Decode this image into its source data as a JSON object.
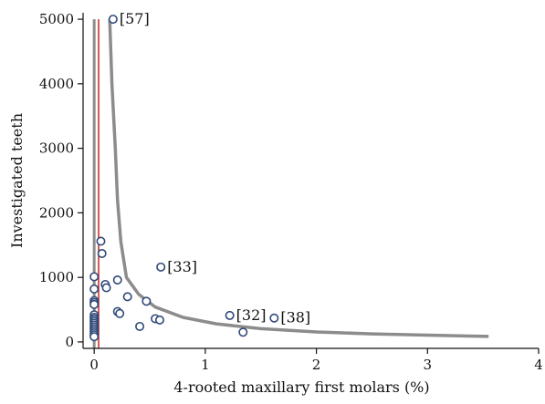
{
  "chart_data": {
    "type": "scatter",
    "title": "",
    "xlabel": "4-rooted maxillary first molars (%)",
    "ylabel": "Investigated teeth",
    "xlim": [
      -0.1,
      4.0
    ],
    "ylim": [
      -100,
      5100
    ],
    "x_ticks": [
      0,
      1,
      2,
      3,
      4
    ],
    "x_tick_labels": [
      "0",
      "1",
      "2",
      "3",
      "4"
    ],
    "y_ticks": [
      0,
      1000,
      2000,
      3000,
      4000,
      5000
    ],
    "y_tick_labels": [
      "0",
      "1000",
      "2000",
      "3000",
      "4000",
      "5000"
    ],
    "grid": false,
    "colors": {
      "points": "#2f4a7a",
      "funnel": "#8c8c8c",
      "reference": "#c8322b",
      "axis": "#111111"
    },
    "reference_line": {
      "x": 0.04
    },
    "funnel_curve": [
      [
        0.14,
        5000
      ],
      [
        0.16,
        4000
      ],
      [
        0.19,
        3000
      ],
      [
        0.21,
        2200
      ],
      [
        0.24,
        1550
      ],
      [
        0.29,
        1000
      ],
      [
        0.4,
        740
      ],
      [
        0.55,
        540
      ],
      [
        0.8,
        380
      ],
      [
        1.1,
        280
      ],
      [
        1.5,
        205
      ],
      [
        2.0,
        155
      ],
      [
        2.5,
        125
      ],
      [
        3.0,
        105
      ],
      [
        3.55,
        85
      ]
    ],
    "points": [
      {
        "x": 0.17,
        "y": 5000,
        "label": "[57]"
      },
      {
        "x": 0.6,
        "y": 1160,
        "label": "[33]"
      },
      {
        "x": 1.22,
        "y": 410,
        "label": "[32]"
      },
      {
        "x": 1.62,
        "y": 370,
        "label": "[38]"
      },
      {
        "x": 0.06,
        "y": 1560
      },
      {
        "x": 0.07,
        "y": 1370
      },
      {
        "x": 0.0,
        "y": 1010
      },
      {
        "x": 0.1,
        "y": 890
      },
      {
        "x": 0.11,
        "y": 840
      },
      {
        "x": 0.21,
        "y": 960
      },
      {
        "x": 0.0,
        "y": 820
      },
      {
        "x": 0.3,
        "y": 700
      },
      {
        "x": 0.47,
        "y": 630
      },
      {
        "x": 0.0,
        "y": 640
      },
      {
        "x": 0.0,
        "y": 610
      },
      {
        "x": 0.0,
        "y": 580
      },
      {
        "x": 0.21,
        "y": 470
      },
      {
        "x": 0.23,
        "y": 440
      },
      {
        "x": 0.55,
        "y": 360
      },
      {
        "x": 0.59,
        "y": 340
      },
      {
        "x": 0.41,
        "y": 240
      },
      {
        "x": 1.34,
        "y": 150
      },
      {
        "x": 0.0,
        "y": 420
      },
      {
        "x": 0.0,
        "y": 380
      },
      {
        "x": 0.0,
        "y": 350
      },
      {
        "x": 0.0,
        "y": 320
      },
      {
        "x": 0.0,
        "y": 290
      },
      {
        "x": 0.0,
        "y": 260
      },
      {
        "x": 0.0,
        "y": 230
      },
      {
        "x": 0.0,
        "y": 200
      },
      {
        "x": 0.0,
        "y": 170
      },
      {
        "x": 0.0,
        "y": 140
      },
      {
        "x": 0.0,
        "y": 110
      },
      {
        "x": 0.0,
        "y": 80
      }
    ]
  }
}
